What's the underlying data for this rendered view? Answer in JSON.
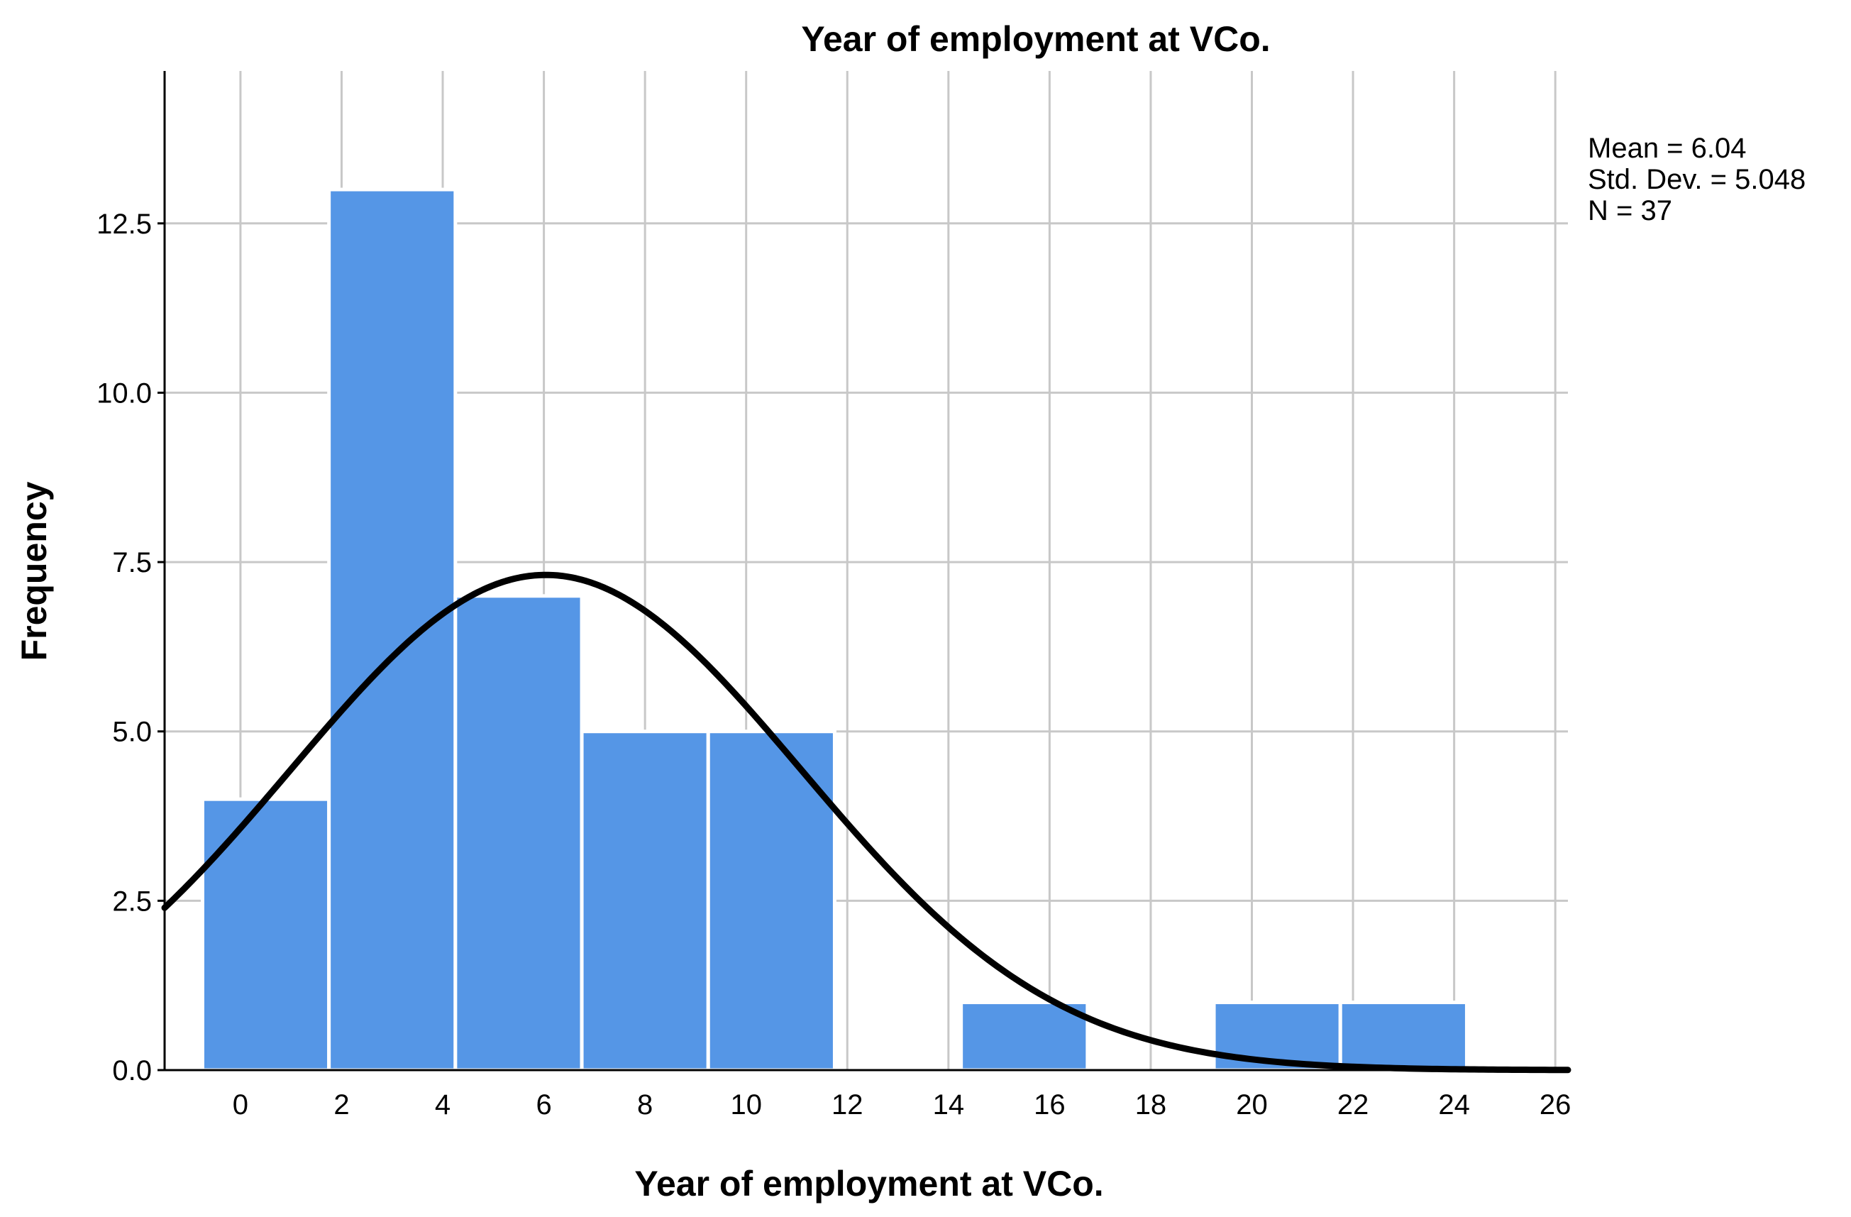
{
  "chart_data": {
    "type": "bar",
    "subtype": "histogram",
    "title": "Year of employment at VCo.",
    "xlabel": "Year of employment at VCo.",
    "ylabel": "Frequency",
    "x_range": [
      -1.5,
      26.25
    ],
    "ylim": [
      0,
      14.75
    ],
    "x_ticks": [
      "0",
      "2",
      "4",
      "6",
      "8",
      "10",
      "12",
      "14",
      "16",
      "18",
      "20",
      "22",
      "24",
      "26"
    ],
    "y_ticks": [
      "0.0",
      "2.5",
      "5.0",
      "7.5",
      "10.0",
      "12.5"
    ],
    "bin_width": 2.5,
    "bins": [
      {
        "start": -0.75,
        "end": 1.75,
        "count": 4
      },
      {
        "start": 1.75,
        "end": 4.25,
        "count": 13
      },
      {
        "start": 4.25,
        "end": 6.75,
        "count": 7
      },
      {
        "start": 6.75,
        "end": 9.25,
        "count": 5
      },
      {
        "start": 9.25,
        "end": 11.75,
        "count": 5
      },
      {
        "start": 11.75,
        "end": 14.25,
        "count": 0
      },
      {
        "start": 14.25,
        "end": 16.75,
        "count": 1
      },
      {
        "start": 16.75,
        "end": 19.25,
        "count": 0
      },
      {
        "start": 19.25,
        "end": 21.75,
        "count": 1
      },
      {
        "start": 21.75,
        "end": 24.25,
        "count": 1
      }
    ],
    "normal_curve": {
      "mean": 6.04,
      "std_dev": 5.048,
      "n": 37
    },
    "stats": {
      "mean": "Mean = 6.04",
      "std_dev": "Std. Dev. = 5.048",
      "n": "N = 37"
    },
    "grid": true,
    "colors": {
      "bar": "#5596e6",
      "bar_edge": "#ffffff",
      "curve": "#000000",
      "grid": "#c8c8c8",
      "axis": "#000000"
    }
  }
}
